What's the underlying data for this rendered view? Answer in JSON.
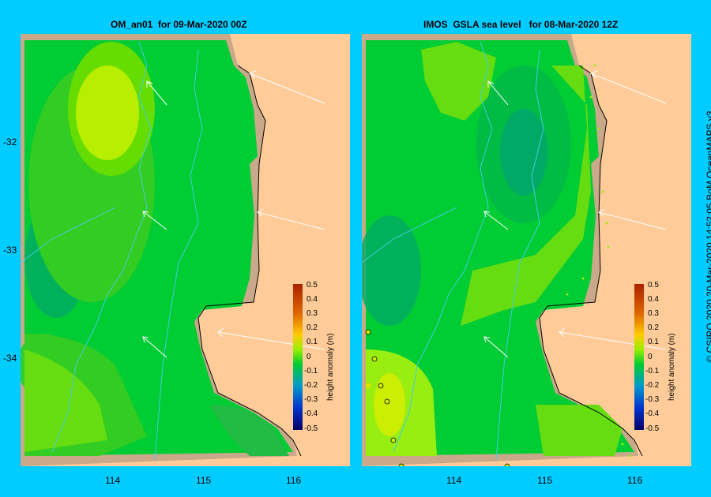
{
  "panels": {
    "left": {
      "title": "OM_an01  for 09-Mar-2020 00Z"
    },
    "right": {
      "title": "IMOS  GSLA sea level   for 08-Mar-2020 12Z"
    }
  },
  "axes": {
    "lat_ticks": [
      "-32",
      "-33",
      "-34"
    ],
    "lon_ticks": [
      "114",
      "115",
      "116"
    ]
  },
  "colorbar": {
    "title": "height anomaly (m)",
    "labels": [
      "0.5",
      "0.4",
      "0.3",
      "0.2",
      "0.1",
      "0",
      "-0.1",
      "-0.2",
      "-0.3",
      "-0.4",
      "-0.5"
    ]
  },
  "credit": "© CSIRO 2020    20-Mar-2020 14:52:05 BoM OceanMAPS v3",
  "colors": {
    "background": "#00ccff",
    "land": "#ffcc99",
    "shelf": "#c9a98a",
    "current": "#44ccdd"
  }
}
